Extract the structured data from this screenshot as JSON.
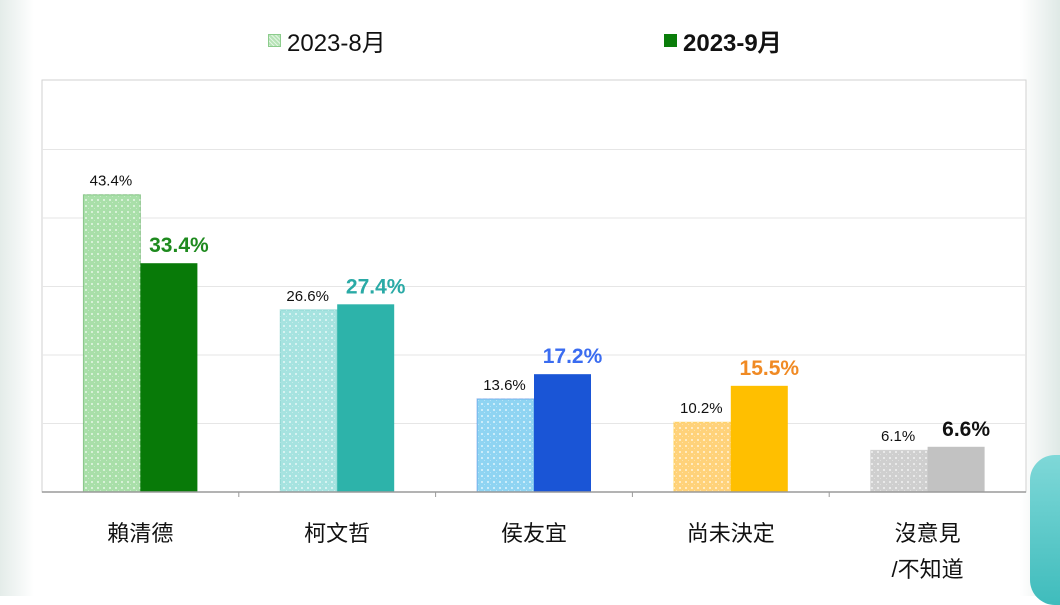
{
  "legend": {
    "aug_label": "2023-8月",
    "sep_label": "2023-9月"
  },
  "colors": {
    "aug": [
      "#a9dfa9",
      "#a6e3e0",
      "#8fd4f2",
      "#ffd27a",
      "#cfcfcf"
    ],
    "sep": [
      "#087a08",
      "#2db3aa",
      "#1a55d6",
      "#ffbf00",
      "#c2c2c2"
    ],
    "sep_label": [
      "#1e8a1e",
      "#2aaaa6",
      "#3a6cf0",
      "#f08a24",
      "#111111"
    ]
  },
  "chart_data": {
    "type": "bar",
    "categories": [
      [
        "賴清德"
      ],
      [
        "柯文哲"
      ],
      [
        "侯友宜"
      ],
      [
        "尚未決定"
      ],
      [
        "沒意見",
        "/不知道"
      ]
    ],
    "series": [
      {
        "name": "2023-8月",
        "values": [
          43.4,
          26.6,
          13.6,
          10.2,
          6.1
        ]
      },
      {
        "name": "2023-9月",
        "values": [
          33.4,
          27.4,
          17.2,
          15.5,
          6.6
        ]
      }
    ],
    "data_labels": {
      "aug": [
        "43.4%",
        "26.6%",
        "13.6%",
        "10.2%",
        "6.1%"
      ],
      "sep": [
        "33.4%",
        "27.4%",
        "17.2%",
        "15.5%",
        "6.6%"
      ]
    },
    "ylim": [
      0,
      50
    ],
    "grid": true,
    "legend_position": "top"
  }
}
